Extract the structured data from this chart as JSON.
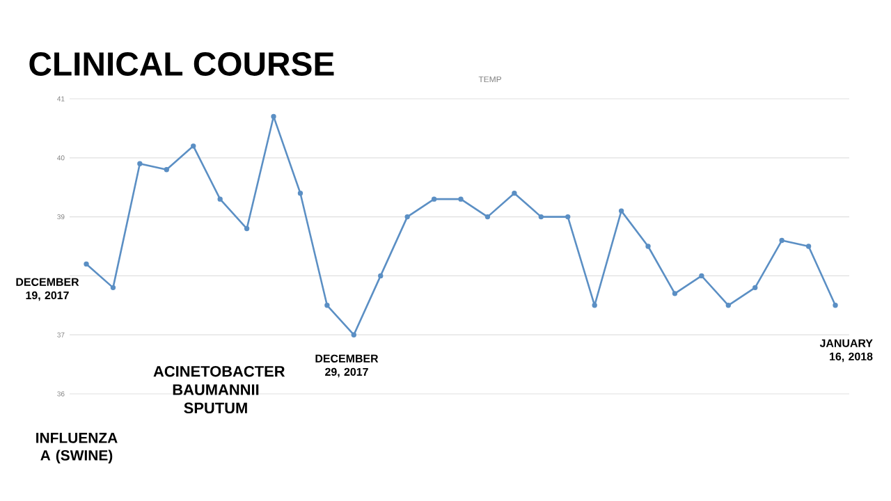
{
  "chart_data": {
    "type": "line",
    "title": "CLINICAL COURSE",
    "subtitle": "TEMP",
    "categories": [
      null,
      null,
      null,
      null,
      null,
      null,
      null,
      null,
      null,
      null,
      null,
      null,
      null,
      null,
      null,
      null,
      null,
      null,
      null,
      null,
      null,
      null,
      null,
      null,
      null,
      null,
      null,
      null,
      null
    ],
    "series": [
      {
        "color": "#5b8fc4",
        "values": [
          38.2,
          37.8,
          39.9,
          39.8,
          40.2,
          39.3,
          38.8,
          40.7,
          39.4,
          37.5,
          37.0,
          38.0,
          39.0,
          39.3,
          39.3,
          39.0,
          39.4,
          39.0,
          39.0,
          37.5,
          39.1,
          38.5,
          37.7,
          38.0,
          37.5,
          37.8,
          38.6,
          38.5,
          37.5
        ]
      }
    ],
    "ylim": [
      36,
      41
    ],
    "yticks": [
      36,
      37,
      {
        "value": 38,
        "label": null
      },
      39,
      40,
      41
    ],
    "grid": "y",
    "marker": "circle",
    "line_style": "solid",
    "annotations": [
      "DECEMBER 19, 2017",
      "ACINETOBACTER BAUMANNII SPUTUM",
      "DECEMBER 29, 2017",
      "JANUARY 16, 2018",
      "INFLUENZA A (SWINE)"
    ]
  }
}
